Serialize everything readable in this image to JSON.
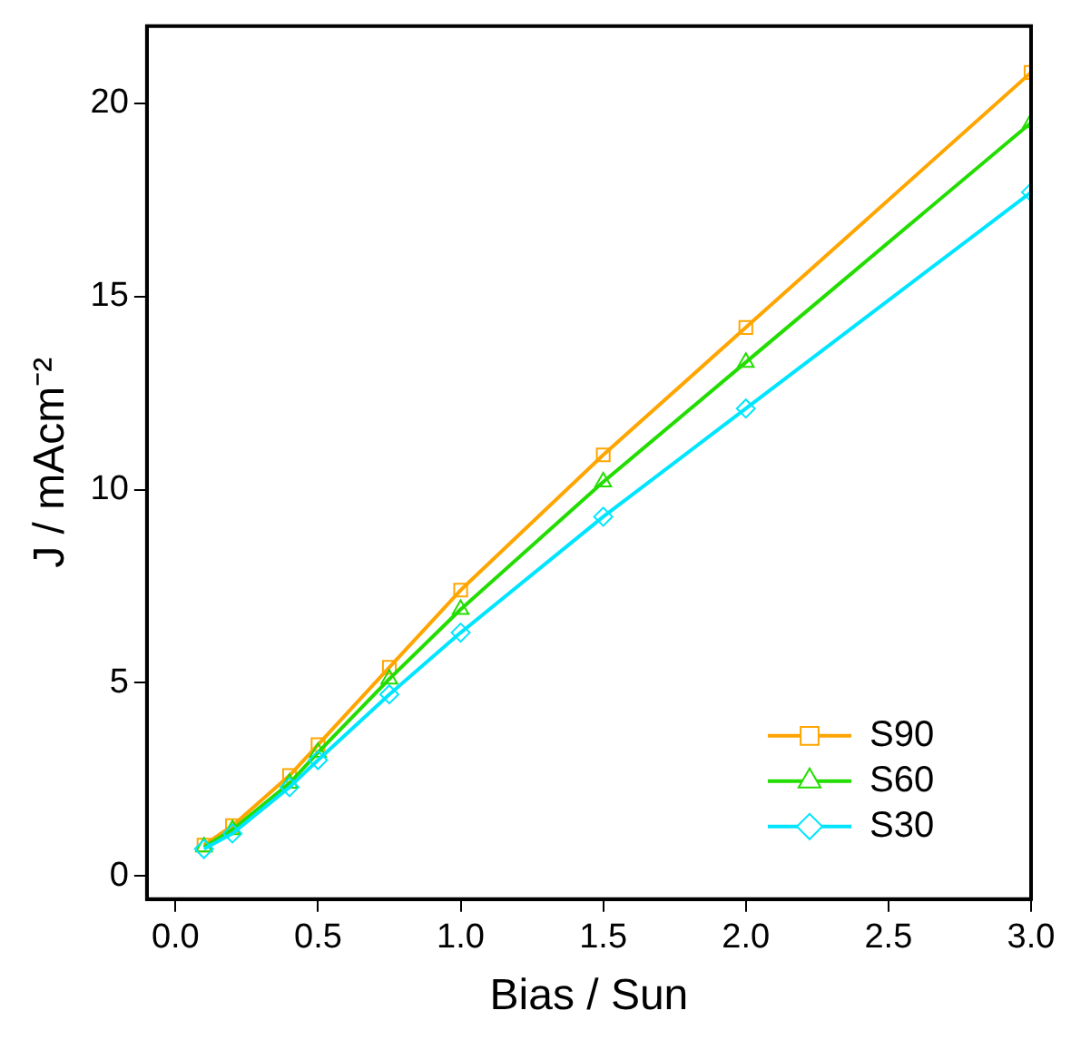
{
  "chart_data": {
    "type": "line",
    "xlabel": "Bias / Sun",
    "ylabel": "J / mAcm⁻²",
    "x": [
      0.1,
      0.2,
      0.4,
      0.5,
      0.75,
      1.0,
      1.5,
      2.0,
      3.0
    ],
    "series": [
      {
        "name": "S90",
        "color": "#ffa500",
        "marker": "square",
        "values": [
          0.8,
          1.3,
          2.6,
          3.4,
          5.4,
          7.4,
          10.9,
          14.2,
          20.8
        ]
      },
      {
        "name": "S60",
        "color": "#22dd00",
        "marker": "triangle",
        "values": [
          0.75,
          1.2,
          2.4,
          3.2,
          5.1,
          6.9,
          10.2,
          13.3,
          19.5
        ]
      },
      {
        "name": "S30",
        "color": "#00e5ff",
        "marker": "diamond",
        "values": [
          0.7,
          1.1,
          2.3,
          3.0,
          4.7,
          6.3,
          9.3,
          12.1,
          17.7
        ]
      }
    ],
    "xlim": [
      -0.1,
      3.0
    ],
    "ylim": [
      -0.6,
      22
    ],
    "xticks": [
      {
        "value": 0,
        "label": "0.0"
      },
      {
        "value": 0.5,
        "label": "0.5"
      },
      {
        "value": 1,
        "label": "1.0"
      },
      {
        "value": 1.5,
        "label": "1.5"
      },
      {
        "value": 2,
        "label": "2.0"
      },
      {
        "value": 2.5,
        "label": "2.5"
      },
      {
        "value": 3,
        "label": "3.0"
      }
    ],
    "yticks": [
      0,
      5,
      10,
      15,
      20
    ],
    "grid": false,
    "legend": "bottom right",
    "line_style": "solid"
  }
}
